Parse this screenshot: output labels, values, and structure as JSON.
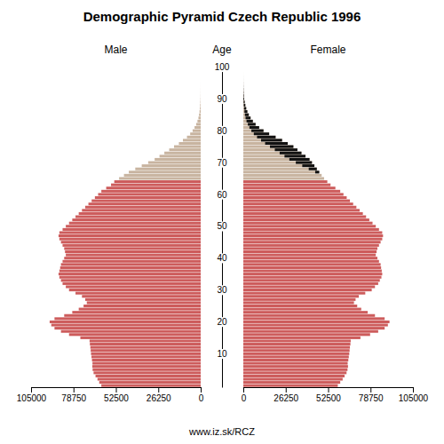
{
  "chart_data": {
    "type": "bar",
    "orientation": "horizontal",
    "title": "Demographic Pyramid Czech Republic 1996",
    "ylabel": "Age",
    "footer": "www.iz.sk/RCZ",
    "categories": [
      0,
      1,
      2,
      3,
      4,
      5,
      6,
      7,
      8,
      9,
      10,
      11,
      12,
      13,
      14,
      15,
      16,
      17,
      18,
      19,
      20,
      21,
      22,
      23,
      24,
      25,
      26,
      27,
      28,
      29,
      30,
      31,
      32,
      33,
      34,
      35,
      36,
      37,
      38,
      39,
      40,
      41,
      42,
      43,
      44,
      45,
      46,
      47,
      48,
      49,
      50,
      51,
      52,
      53,
      54,
      55,
      56,
      57,
      58,
      59,
      60,
      61,
      62,
      63,
      64,
      65,
      66,
      67,
      68,
      69,
      70,
      71,
      72,
      73,
      74,
      75,
      76,
      77,
      78,
      79,
      80,
      81,
      82,
      83,
      84,
      85,
      86,
      87,
      88,
      89,
      90,
      91,
      92,
      93,
      94,
      95,
      96,
      97,
      98,
      99
    ],
    "colors": [
      "#CD5C5C",
      "#CD5C5C",
      "#CD5C5C",
      "#CD5C5C",
      "#CD5C5C",
      "#CD5C5C",
      "#CD5C5C",
      "#CD5C5C",
      "#CD5C5C",
      "#CD5C5C",
      "#CD5C5C",
      "#CD5C5C",
      "#CD5C5C",
      "#CD5C5C",
      "#CD5C5C",
      "#CD5C5C",
      "#CD5C5C",
      "#CD5C5C",
      "#CD5C5C",
      "#CD5C5C",
      "#CD5C5C",
      "#CD5C5C",
      "#CD5C5C",
      "#CD5C5C",
      "#CD5C5C",
      "#CD5C5C",
      "#CD5C5C",
      "#CD5C5C",
      "#CD5C5C",
      "#CD5C5C",
      "#CD5C5C",
      "#CD5C5C",
      "#CD5C5C",
      "#CD5C5C",
      "#CD5C5C",
      "#CD5C5C",
      "#CD5C5C",
      "#CD5C5C",
      "#CD5C5C",
      "#CD5C5C",
      "#CD5C5C",
      "#CD5C5C",
      "#CD5C5C",
      "#CD5C5C",
      "#CD5C5C",
      "#CD5C5C",
      "#CD5C5C",
      "#CD5C5C",
      "#CD5C5C",
      "#CD5C5C",
      "#CD5C5C",
      "#CD5C5C",
      "#CD5C5C",
      "#CD5C5C",
      "#CD5C5C",
      "#CD5C5C",
      "#CD5C5C",
      "#CD5C5C",
      "#CD5C5C",
      "#CD5C5C",
      "#CD5C5C",
      "#CD5C5C",
      "#CD5C5C",
      "#CD5C5C",
      "#CD5C5C",
      "#C8B4A0",
      "#C8B4A0",
      "#C8B4A0",
      "#C8B4A0",
      "#C8B4A0",
      "#C8B4A0",
      "#C8B4A0",
      "#C8B4A0",
      "#C8B4A0",
      "#C8B4A0",
      "#C8B4A0",
      "#C8B4A0",
      "#C8B4A0",
      "#C8B4A0",
      "#C8B4A0",
      "#C8B4A0",
      "#C8B4A0",
      "#C8B4A0",
      "#C8B4A0",
      "#C8B4A0",
      "#C8B4A0",
      "#C8B4A0",
      "#C8B4A0",
      "#C8B4A0",
      "#C8B4A0",
      "#C8B4A0",
      "#C8B4A0",
      "#C8B4A0",
      "#C8B4A0",
      "#C8B4A0",
      "#C8B4A0",
      "#C8B4A0",
      "#C8B4A0",
      "#C8B4A0",
      "#C8B4A0"
    ],
    "series": [
      {
        "name": "Male",
        "values": [
          61500,
          62800,
          63900,
          65100,
          66300,
          66900,
          67100,
          67000,
          67300,
          67600,
          67900,
          68100,
          68300,
          68600,
          68800,
          74500,
          81500,
          86500,
          90500,
          92500,
          93500,
          90500,
          84500,
          79500,
          75500,
          72500,
          70500,
          71500,
          73500,
          77500,
          81500,
          83500,
          85500,
          86500,
          87500,
          88000,
          87500,
          87000,
          86500,
          85500,
          84500,
          83500,
          84000,
          84500,
          85500,
          86500,
          87500,
          88000,
          87500,
          85500,
          83500,
          81500,
          79500,
          77500,
          75500,
          73500,
          71500,
          69500,
          67500,
          65500,
          63500,
          61500,
          58500,
          55500,
          53500,
          50500,
          47500,
          44500,
          40500,
          36500,
          32500,
          28500,
          25500,
          22500,
          19500,
          16500,
          13500,
          11000,
          8500,
          6500,
          5000,
          3800,
          2800,
          2000,
          1400,
          1000,
          700,
          480,
          320,
          210,
          130,
          80,
          50,
          30,
          18,
          10,
          6,
          3,
          2,
          1
        ]
      },
      {
        "name": "Female",
        "values": [
          58500,
          60000,
          61500,
          62700,
          63900,
          64500,
          64800,
          64600,
          65000,
          65300,
          65600,
          65800,
          66000,
          66300,
          66500,
          72500,
          78500,
          83500,
          87500,
          89500,
          90500,
          87500,
          81500,
          77000,
          73000,
          70500,
          68500,
          69500,
          71500,
          75500,
          79500,
          81500,
          83500,
          84500,
          85500,
          86000,
          85700,
          85300,
          85000,
          84000,
          83000,
          82000,
          82500,
          83000,
          84000,
          85000,
          86000,
          86500,
          86000,
          84000,
          82000,
          80000,
          78000,
          76000,
          74000,
          72000,
          70000,
          68000,
          66000,
          64000,
          62000,
          60000,
          57000,
          54000,
          52000,
          50000,
          48500,
          47000,
          45500,
          44000,
          42500,
          41000,
          38500,
          36000,
          33500,
          31000,
          27500,
          24000,
          20000,
          16000,
          12500,
          9800,
          7600,
          5900,
          4500,
          3400,
          2500,
          1800,
          1250,
          850,
          550,
          350,
          210,
          125,
          72,
          40,
          22,
          12,
          6,
          3
        ]
      },
      {
        "color": "#111111",
        "values": [
          null,
          null,
          null,
          null,
          null,
          null,
          null,
          null,
          null,
          null,
          null,
          null,
          null,
          null,
          null,
          null,
          null,
          null,
          null,
          null,
          null,
          null,
          null,
          null,
          null,
          null,
          null,
          null,
          null,
          null,
          null,
          null,
          null,
          null,
          null,
          null,
          null,
          null,
          null,
          null,
          null,
          null,
          null,
          null,
          null,
          null,
          null,
          null,
          null,
          null,
          null,
          null,
          null,
          null,
          null,
          null,
          null,
          null,
          null,
          null,
          null,
          null,
          null,
          null,
          null,
          null,
          null,
          2500,
          5000,
          7500,
          10000,
          12500,
          13000,
          13500,
          14000,
          14500,
          14000,
          13000,
          11500,
          9500,
          7500,
          6000,
          4800,
          3900,
          3100,
          2400,
          1800,
          1320,
          930,
          640,
          420,
          270,
          160,
          95,
          54,
          30,
          16,
          9,
          4,
          2
        ]
      }
    ],
    "xlim": [
      0,
      105000
    ],
    "xticks": [
      0,
      26250,
      52500,
      78750,
      105000
    ],
    "ylim": [
      -0.5,
      101.5
    ],
    "yticks": [
      10,
      20,
      30,
      40,
      50,
      60,
      70,
      80,
      90,
      100
    ]
  }
}
